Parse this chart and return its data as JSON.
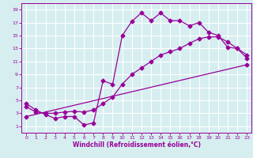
{
  "title": "",
  "xlabel": "Windchill (Refroidissement éolien,°C)",
  "bg_color": "#d6eef0",
  "grid_color": "#ffffff",
  "line_color": "#990099",
  "xlim": [
    -0.5,
    23.5
  ],
  "ylim": [
    0,
    20
  ],
  "xticks": [
    0,
    1,
    2,
    3,
    4,
    5,
    6,
    7,
    8,
    9,
    10,
    11,
    12,
    13,
    14,
    15,
    16,
    17,
    18,
    19,
    20,
    21,
    22,
    23
  ],
  "yticks": [
    1,
    3,
    5,
    7,
    9,
    11,
    13,
    15,
    17,
    19
  ],
  "curve1_x": [
    0,
    1,
    2,
    3,
    4,
    5,
    6,
    7,
    8,
    9,
    10,
    11,
    12,
    13,
    14,
    15,
    16,
    17,
    18,
    19,
    20,
    21,
    22,
    23
  ],
  "curve1_y": [
    4.5,
    3.5,
    2.8,
    2.2,
    2.5,
    2.5,
    1.2,
    1.5,
    8.0,
    7.5,
    15.0,
    17.2,
    18.5,
    17.3,
    18.5,
    17.3,
    17.3,
    16.5,
    17.0,
    15.5,
    15.0,
    13.2,
    13.0,
    12.0
  ],
  "curve2_x": [
    0,
    1,
    2,
    3,
    4,
    5,
    6,
    7,
    8,
    9,
    10,
    11,
    12,
    13,
    14,
    15,
    16,
    17,
    18,
    19,
    20,
    21,
    22,
    23
  ],
  "curve2_y": [
    4.0,
    3.2,
    3.0,
    3.0,
    3.2,
    3.3,
    3.2,
    3.5,
    4.5,
    5.5,
    7.5,
    9.0,
    10.0,
    11.0,
    12.0,
    12.5,
    13.0,
    13.8,
    14.5,
    14.8,
    14.8,
    14.0,
    13.0,
    11.5
  ],
  "curve3_x": [
    0,
    23
  ],
  "curve3_y": [
    2.5,
    10.5
  ],
  "marker": "D",
  "markersize": 2.5,
  "linewidth": 0.9
}
